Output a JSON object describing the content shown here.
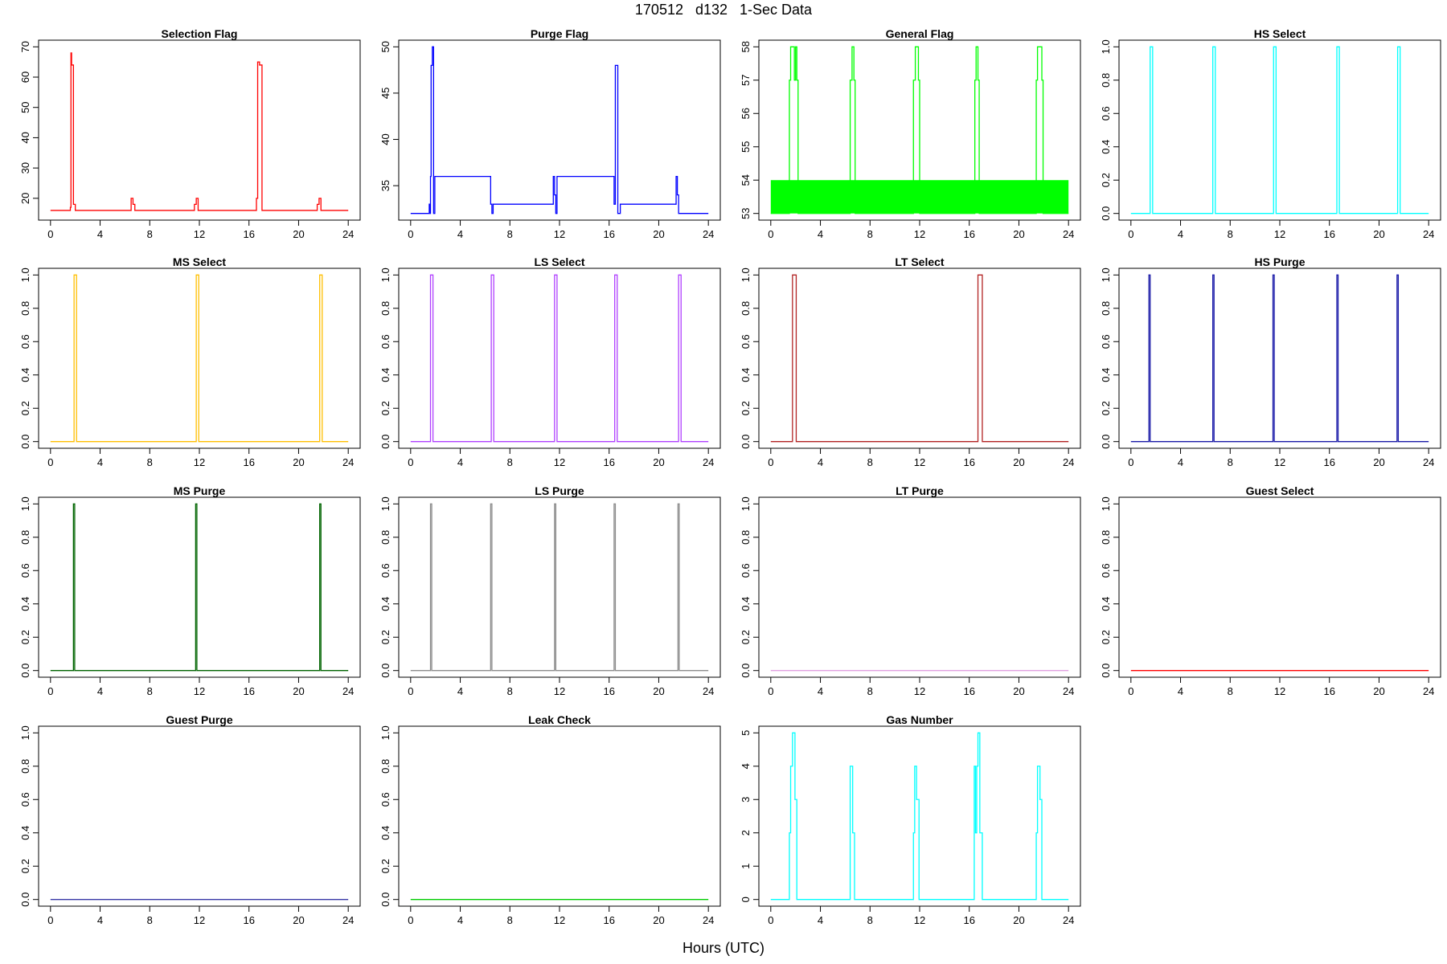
{
  "title": "170512   d132   1-Sec Data",
  "xlabel": "Hours (UTC)",
  "chart_data": [
    {
      "type": "line",
      "step": true,
      "title": "Selection Flag",
      "color": "#ff0000",
      "xlim": [
        0,
        24
      ],
      "ylim": [
        15,
        70
      ],
      "xticks": [
        0,
        4,
        8,
        12,
        16,
        20,
        24
      ],
      "yticks": [
        20,
        30,
        40,
        50,
        60,
        70
      ],
      "x": [
        0,
        1.6,
        1.6,
        1.65,
        1.65,
        1.7,
        1.7,
        1.85,
        1.85,
        2.0,
        2.0,
        2.2,
        2.2,
        6.5,
        6.5,
        6.65,
        6.65,
        6.8,
        6.8,
        11.6,
        11.6,
        11.75,
        11.75,
        11.9,
        11.9,
        16.6,
        16.6,
        16.7,
        16.7,
        16.85,
        16.85,
        17.05,
        17.05,
        21.5,
        21.5,
        21.65,
        21.65,
        21.8,
        21.8,
        24
      ],
      "y": [
        16,
        16,
        17,
        17,
        68,
        68,
        64,
        64,
        18,
        18,
        16,
        16,
        16,
        16,
        20,
        20,
        18,
        18,
        16,
        16,
        18,
        18,
        20,
        20,
        16,
        16,
        20,
        20,
        65,
        65,
        64,
        64,
        16,
        16,
        18,
        18,
        20,
        20,
        16,
        16
      ]
    },
    {
      "type": "line",
      "step": true,
      "title": "Purge Flag",
      "color": "#0000ff",
      "xlim": [
        0,
        24
      ],
      "ylim": [
        32,
        50
      ],
      "xticks": [
        0,
        4,
        8,
        12,
        16,
        20,
        24
      ],
      "yticks": [
        35,
        40,
        45,
        50
      ],
      "x": [
        0,
        1.5,
        1.5,
        1.55,
        1.55,
        1.6,
        1.6,
        1.65,
        1.65,
        1.75,
        1.75,
        1.85,
        1.85,
        1.95,
        1.95,
        6.45,
        6.45,
        6.55,
        6.55,
        6.65,
        6.65,
        11.5,
        11.5,
        11.6,
        11.6,
        11.7,
        11.7,
        11.8,
        11.8,
        16.4,
        16.4,
        16.5,
        16.5,
        16.6,
        16.6,
        16.7,
        16.7,
        16.9,
        16.9,
        21.4,
        21.4,
        21.5,
        21.5,
        21.6,
        21.6,
        21.7,
        21.7,
        24
      ],
      "y": [
        32,
        32,
        33,
        33,
        32,
        32,
        36,
        36,
        48,
        48,
        50,
        50,
        32,
        32,
        36,
        36,
        33,
        33,
        32,
        32,
        33,
        33,
        36,
        36,
        34,
        34,
        32,
        32,
        36,
        36,
        33,
        33,
        48,
        48,
        48,
        48,
        32,
        32,
        33,
        33,
        36,
        36,
        34,
        34,
        32,
        32,
        32,
        32
      ]
    },
    {
      "type": "line",
      "step": true,
      "band": [
        53,
        54
      ],
      "title": "General Flag",
      "color": "#00ff00",
      "xlim": [
        0,
        24
      ],
      "ylim": [
        53,
        58
      ],
      "xticks": [
        0,
        4,
        8,
        12,
        16,
        20,
        24
      ],
      "yticks": [
        53,
        54,
        55,
        56,
        57,
        58
      ],
      "x": [
        0,
        1.5,
        1.5,
        1.6,
        1.6,
        1.9,
        1.9,
        2.0,
        2.0,
        2.1,
        2.1,
        2.2,
        2.2,
        6.4,
        6.4,
        6.55,
        6.55,
        6.7,
        6.7,
        6.8,
        6.8,
        11.5,
        11.5,
        11.65,
        11.65,
        11.9,
        11.9,
        12.0,
        12.0,
        16.45,
        16.45,
        16.55,
        16.55,
        16.7,
        16.7,
        16.8,
        16.8,
        21.4,
        21.4,
        21.5,
        21.5,
        21.85,
        21.85,
        21.95,
        21.95,
        24
      ],
      "y": [
        53,
        53,
        57,
        57,
        58,
        58,
        57,
        57,
        58,
        58,
        57,
        57,
        53,
        53,
        57,
        57,
        58,
        58,
        57,
        57,
        53,
        53,
        57,
        57,
        58,
        58,
        57,
        57,
        53,
        53,
        57,
        57,
        58,
        58,
        57,
        57,
        53,
        53,
        57,
        57,
        58,
        58,
        57,
        57,
        53,
        53
      ]
    },
    {
      "type": "line",
      "step": true,
      "title": "HS Select",
      "color": "#00ffff",
      "xlim": [
        0,
        24
      ],
      "ylim": [
        0,
        1
      ],
      "xticks": [
        0,
        4,
        8,
        12,
        16,
        20,
        24
      ],
      "yticks": [
        0.0,
        0.2,
        0.4,
        0.6,
        0.8,
        1.0
      ],
      "x": [
        0,
        1.55,
        1.55,
        1.75,
        1.75,
        6.6,
        6.6,
        6.8,
        6.8,
        11.5,
        11.5,
        11.7,
        11.7,
        16.6,
        16.6,
        16.8,
        16.8,
        21.5,
        21.5,
        21.7,
        21.7,
        24
      ],
      "y": [
        0,
        0,
        1,
        1,
        0,
        0,
        1,
        1,
        0,
        0,
        1,
        1,
        0,
        0,
        1,
        1,
        0,
        0,
        1,
        1,
        0,
        0
      ]
    },
    {
      "type": "line",
      "step": true,
      "title": "MS Select",
      "color": "#ffbf00",
      "xlim": [
        0,
        24
      ],
      "ylim": [
        0,
        1
      ],
      "xticks": [
        0,
        4,
        8,
        12,
        16,
        20,
        24
      ],
      "yticks": [
        0.0,
        0.2,
        0.4,
        0.6,
        0.8,
        1.0
      ],
      "x": [
        0,
        1.9,
        1.9,
        2.1,
        2.1,
        11.75,
        11.75,
        11.95,
        11.95,
        21.7,
        21.7,
        21.9,
        21.9,
        24
      ],
      "y": [
        0,
        0,
        1,
        1,
        0,
        0,
        1,
        1,
        0,
        0,
        1,
        1,
        0,
        0
      ]
    },
    {
      "type": "line",
      "step": true,
      "title": "LS Select",
      "color": "#b040ff",
      "xlim": [
        0,
        24
      ],
      "ylim": [
        0,
        1
      ],
      "xticks": [
        0,
        4,
        8,
        12,
        16,
        20,
        24
      ],
      "yticks": [
        0.0,
        0.2,
        0.4,
        0.6,
        0.8,
        1.0
      ],
      "x": [
        0,
        1.6,
        1.6,
        1.8,
        1.8,
        6.5,
        6.5,
        6.7,
        6.7,
        11.6,
        11.6,
        11.8,
        11.8,
        16.45,
        16.45,
        16.65,
        16.65,
        21.6,
        21.6,
        21.8,
        21.8,
        24
      ],
      "y": [
        0,
        0,
        1,
        1,
        0,
        0,
        1,
        1,
        0,
        0,
        1,
        1,
        0,
        0,
        1,
        1,
        0,
        0,
        1,
        1,
        0,
        0
      ]
    },
    {
      "type": "line",
      "step": true,
      "title": "LT Select",
      "color": "#b22222",
      "xlim": [
        0,
        24
      ],
      "ylim": [
        0,
        1
      ],
      "xticks": [
        0,
        4,
        8,
        12,
        16,
        20,
        24
      ],
      "yticks": [
        0.0,
        0.2,
        0.4,
        0.6,
        0.8,
        1.0
      ],
      "x": [
        0,
        1.75,
        1.75,
        2.05,
        2.05,
        16.7,
        16.7,
        17.05,
        17.05,
        24
      ],
      "y": [
        0,
        0,
        1,
        1,
        0,
        0,
        1,
        1,
        0,
        0
      ]
    },
    {
      "type": "line",
      "step": true,
      "title": "HS Purge",
      "color": "#1a1aa8",
      "xlim": [
        0,
        24
      ],
      "ylim": [
        0,
        1
      ],
      "xticks": [
        0,
        4,
        8,
        12,
        16,
        20,
        24
      ],
      "yticks": [
        0.0,
        0.2,
        0.4,
        0.6,
        0.8,
        1.0
      ],
      "x": [
        0,
        1.45,
        1.45,
        1.55,
        1.55,
        6.6,
        6.6,
        6.7,
        6.7,
        11.45,
        11.45,
        11.55,
        11.55,
        16.6,
        16.6,
        16.7,
        16.7,
        21.45,
        21.45,
        21.55,
        21.55,
        24
      ],
      "y": [
        0,
        0,
        1,
        1,
        0,
        0,
        1,
        1,
        0,
        0,
        1,
        1,
        0,
        0,
        1,
        1,
        0,
        0,
        1,
        1,
        0,
        0
      ]
    },
    {
      "type": "line",
      "step": true,
      "title": "MS Purge",
      "color": "#006400",
      "xlim": [
        0,
        24
      ],
      "ylim": [
        0,
        1
      ],
      "xticks": [
        0,
        4,
        8,
        12,
        16,
        20,
        24
      ],
      "yticks": [
        0.0,
        0.2,
        0.4,
        0.6,
        0.8,
        1.0
      ],
      "x": [
        0,
        1.85,
        1.85,
        1.95,
        1.95,
        11.7,
        11.7,
        11.8,
        11.8,
        21.7,
        21.7,
        21.8,
        21.8,
        24
      ],
      "y": [
        0,
        0,
        1,
        1,
        0,
        0,
        1,
        1,
        0,
        0,
        1,
        1,
        0,
        0
      ]
    },
    {
      "type": "line",
      "step": true,
      "title": "LS Purge",
      "color": "#8c8c8c",
      "xlim": [
        0,
        24
      ],
      "ylim": [
        0,
        1
      ],
      "xticks": [
        0,
        4,
        8,
        12,
        16,
        20,
        24
      ],
      "yticks": [
        0.0,
        0.2,
        0.4,
        0.6,
        0.8,
        1.0
      ],
      "x": [
        0,
        1.6,
        1.6,
        1.7,
        1.7,
        6.45,
        6.45,
        6.55,
        6.55,
        11.6,
        11.6,
        11.7,
        11.7,
        16.4,
        16.4,
        16.5,
        16.5,
        21.55,
        21.55,
        21.65,
        21.65,
        24
      ],
      "y": [
        0,
        0,
        1,
        1,
        0,
        0,
        1,
        1,
        0,
        0,
        1,
        1,
        0,
        0,
        1,
        1,
        0,
        0,
        1,
        1,
        0,
        0
      ]
    },
    {
      "type": "line",
      "step": true,
      "title": "LT Purge",
      "color": "#e0a0e0",
      "xlim": [
        0,
        24
      ],
      "ylim": [
        0,
        1
      ],
      "xticks": [
        0,
        4,
        8,
        12,
        16,
        20,
        24
      ],
      "yticks": [
        0.0,
        0.2,
        0.4,
        0.6,
        0.8,
        1.0
      ],
      "x": [
        0,
        24
      ],
      "y": [
        0,
        0
      ]
    },
    {
      "type": "line",
      "step": true,
      "title": "Guest Select",
      "color": "#ff0000",
      "xlim": [
        0,
        24
      ],
      "ylim": [
        0,
        1
      ],
      "xticks": [
        0,
        4,
        8,
        12,
        16,
        20,
        24
      ],
      "yticks": [
        0.0,
        0.2,
        0.4,
        0.6,
        0.8,
        1.0
      ],
      "x": [
        0,
        24
      ],
      "y": [
        0,
        0
      ]
    },
    {
      "type": "line",
      "step": true,
      "title": "Guest Purge",
      "color": "#3a3aa8",
      "xlim": [
        0,
        24
      ],
      "ylim": [
        0,
        1
      ],
      "xticks": [
        0,
        4,
        8,
        12,
        16,
        20,
        24
      ],
      "yticks": [
        0.0,
        0.2,
        0.4,
        0.6,
        0.8,
        1.0
      ],
      "x": [
        0,
        24
      ],
      "y": [
        0,
        0
      ]
    },
    {
      "type": "line",
      "step": true,
      "title": "Leak Check",
      "color": "#00cc00",
      "xlim": [
        0,
        24
      ],
      "ylim": [
        0,
        1
      ],
      "xticks": [
        0,
        4,
        8,
        12,
        16,
        20,
        24
      ],
      "yticks": [
        0.0,
        0.2,
        0.4,
        0.6,
        0.8,
        1.0
      ],
      "x": [
        0,
        24
      ],
      "y": [
        0,
        0
      ]
    },
    {
      "type": "line",
      "step": true,
      "title": "Gas Number",
      "color": "#00ffff",
      "xlim": [
        0,
        24
      ],
      "ylim": [
        0,
        5
      ],
      "xticks": [
        0,
        4,
        8,
        12,
        16,
        20,
        24
      ],
      "yticks": [
        0,
        1,
        2,
        3,
        4,
        5
      ],
      "x": [
        0,
        1.5,
        1.5,
        1.6,
        1.6,
        1.75,
        1.75,
        1.95,
        1.95,
        2.1,
        2.1,
        2.2,
        2.2,
        6.4,
        6.4,
        6.6,
        6.6,
        6.75,
        6.75,
        11.5,
        11.5,
        11.6,
        11.6,
        11.75,
        11.75,
        11.95,
        11.95,
        16.4,
        16.4,
        16.5,
        16.5,
        16.6,
        16.6,
        16.7,
        16.7,
        16.85,
        16.85,
        17.05,
        17.05,
        21.4,
        21.4,
        21.5,
        21.5,
        21.7,
        21.7,
        21.85,
        21.85,
        24
      ],
      "y": [
        0,
        0,
        2,
        2,
        4,
        4,
        5,
        5,
        3,
        3,
        0,
        0,
        0,
        0,
        4,
        4,
        2,
        2,
        0,
        0,
        2,
        2,
        4,
        4,
        3,
        3,
        0,
        0,
        4,
        4,
        2,
        2,
        4,
        4,
        5,
        5,
        2,
        2,
        0,
        0,
        2,
        2,
        4,
        4,
        3,
        3,
        0,
        0
      ]
    }
  ]
}
